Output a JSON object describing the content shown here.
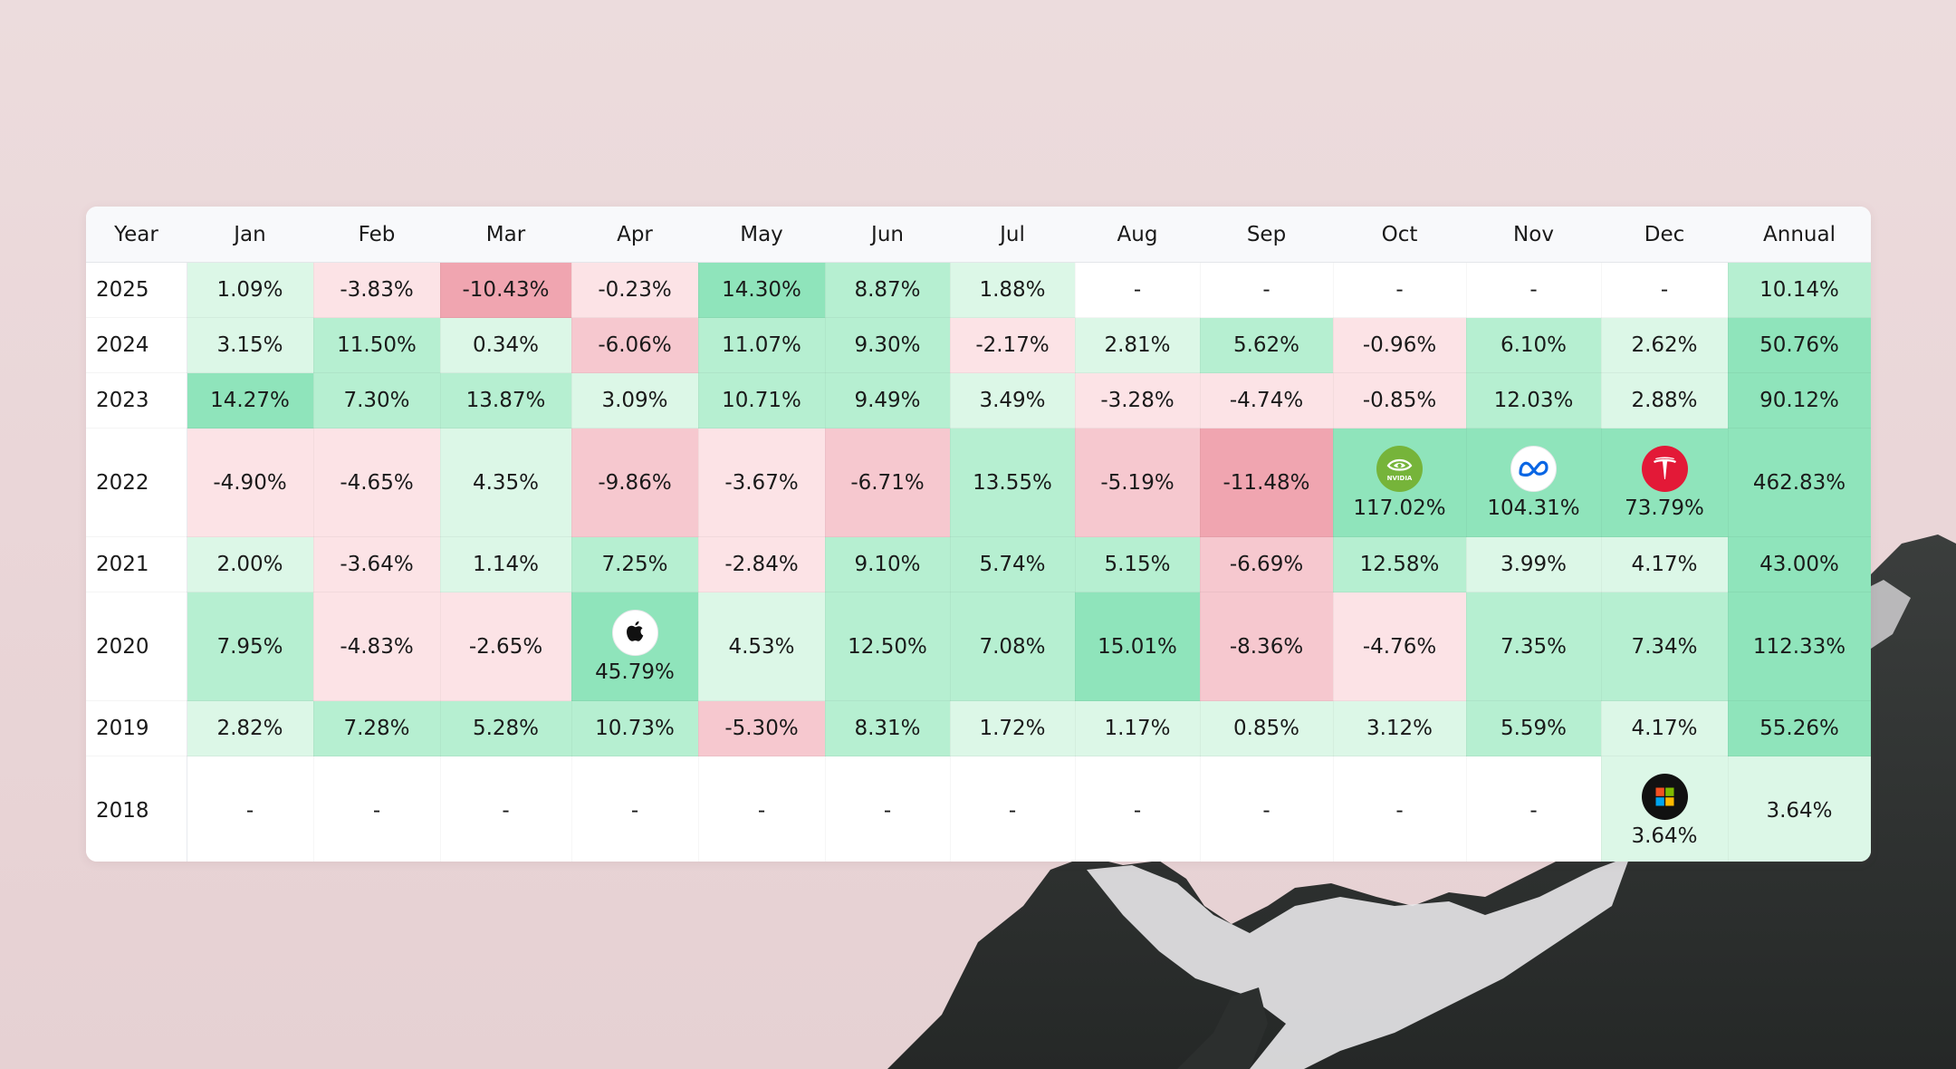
{
  "header": {
    "year_label": "Year",
    "months": [
      "Jan",
      "Feb",
      "Mar",
      "Apr",
      "May",
      "Jun",
      "Jul",
      "Aug",
      "Sep",
      "Oct",
      "Nov",
      "Dec"
    ],
    "annual_label": "Annual"
  },
  "rows": [
    {
      "year": "2025",
      "cells": [
        "1.09%",
        "-3.83%",
        "-10.43%",
        "-0.23%",
        "14.30%",
        "8.87%",
        "1.88%",
        "-",
        "-",
        "-",
        "-",
        "-"
      ],
      "annual": "10.14%"
    },
    {
      "year": "2024",
      "cells": [
        "3.15%",
        "11.50%",
        "0.34%",
        "-6.06%",
        "11.07%",
        "9.30%",
        "-2.17%",
        "2.81%",
        "5.62%",
        "-0.96%",
        "6.10%",
        "2.62%"
      ],
      "annual": "50.76%"
    },
    {
      "year": "2023",
      "cells": [
        "14.27%",
        "7.30%",
        "13.87%",
        "3.09%",
        "10.71%",
        "9.49%",
        "3.49%",
        "-3.28%",
        "-4.74%",
        "-0.85%",
        "12.03%",
        "2.88%"
      ],
      "annual": "90.12%"
    },
    {
      "year": "2022",
      "cells": [
        "-4.90%",
        "-4.65%",
        "4.35%",
        "-9.86%",
        "-3.67%",
        "-6.71%",
        "13.55%",
        "-5.19%",
        "-11.48%",
        "117.02%",
        "104.31%",
        "73.79%"
      ],
      "annual": "462.83%"
    },
    {
      "year": "2021",
      "cells": [
        "2.00%",
        "-3.64%",
        "1.14%",
        "7.25%",
        "-2.84%",
        "9.10%",
        "5.74%",
        "5.15%",
        "-6.69%",
        "12.58%",
        "3.99%",
        "4.17%"
      ],
      "annual": "43.00%"
    },
    {
      "year": "2020",
      "cells": [
        "7.95%",
        "-4.83%",
        "-2.65%",
        "45.79%",
        "4.53%",
        "12.50%",
        "7.08%",
        "15.01%",
        "-8.36%",
        "-4.76%",
        "7.35%",
        "7.34%"
      ],
      "annual": "112.33%"
    },
    {
      "year": "2019",
      "cells": [
        "2.82%",
        "7.28%",
        "5.28%",
        "10.73%",
        "-5.30%",
        "8.31%",
        "1.72%",
        "1.17%",
        "0.85%",
        "3.12%",
        "5.59%",
        "4.17%"
      ],
      "annual": "55.26%"
    },
    {
      "year": "2018",
      "cells": [
        "-",
        "-",
        "-",
        "-",
        "-",
        "-",
        "-",
        "-",
        "-",
        "-",
        "-",
        "3.64%"
      ],
      "annual": "3.64%"
    }
  ],
  "logos": [
    {
      "year": "2022",
      "month_index": 9,
      "icon": "nvidia-logo-icon",
      "logo_text": "NVIDIA",
      "bg": "#76b43a"
    },
    {
      "year": "2022",
      "month_index": 10,
      "icon": "meta-logo-icon",
      "bg": "#ffffff"
    },
    {
      "year": "2022",
      "month_index": 11,
      "icon": "tesla-logo-icon",
      "bg": "#e31937"
    },
    {
      "year": "2020",
      "month_index": 3,
      "icon": "apple-logo-icon",
      "bg": "#ffffff"
    },
    {
      "year": "2018",
      "month_index": 11,
      "icon": "microsoft-logo-icon",
      "bg": "#111111"
    }
  ],
  "colors": {
    "pos_1": "#dcf7e7",
    "pos_2": "#b6efd1",
    "pos_3": "#8fe4bb",
    "neg_1": "#fce3e6",
    "neg_2": "#f6c8cf",
    "neg_3": "#f0a5b0",
    "empty": "#ffffff"
  }
}
